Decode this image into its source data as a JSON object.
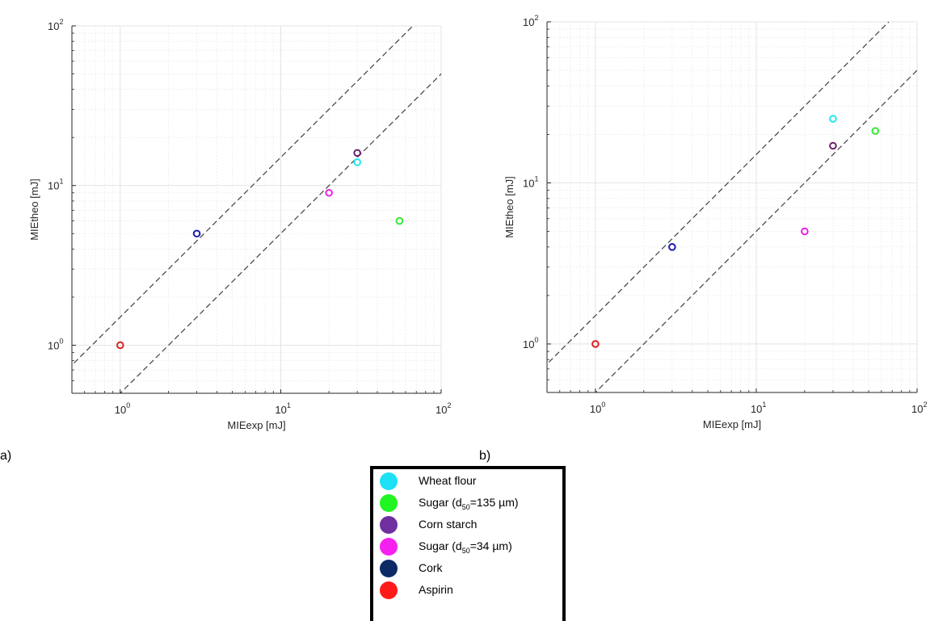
{
  "panels": {
    "a_label": "a)",
    "b_label": "b)"
  },
  "chart_data": [
    {
      "type": "scatter",
      "panel": "a",
      "xlabel": "MIEexp [mJ]",
      "ylabel": "MIEtheo [mJ]",
      "x_scale": "log",
      "y_scale": "log",
      "xlim": [
        0.5,
        100
      ],
      "ylim": [
        0.5,
        100
      ],
      "x_ticks": [
        1,
        10,
        100
      ],
      "y_ticks": [
        1,
        10,
        100
      ],
      "grid": true,
      "reference_lines": [
        {
          "style": "dashed",
          "relation": "y = 1.5x"
        },
        {
          "style": "dashed",
          "relation": "y = 0.5x"
        }
      ],
      "points": [
        {
          "name": "Wheat flour",
          "x": 30,
          "y": 14
        },
        {
          "name": "Sugar (d50=135 µm)",
          "x": 55,
          "y": 6
        },
        {
          "name": "Corn starch",
          "x": 30,
          "y": 16
        },
        {
          "name": "Sugar (d50=34 µm)",
          "x": 20,
          "y": 9
        },
        {
          "name": "Cork",
          "x": 3,
          "y": 5
        },
        {
          "name": "Aspirin",
          "x": 1,
          "y": 1
        }
      ]
    },
    {
      "type": "scatter",
      "panel": "b",
      "xlabel": "MIEexp [mJ]",
      "ylabel": "MIEtheo [mJ]",
      "x_scale": "log",
      "y_scale": "log",
      "xlim": [
        0.5,
        100
      ],
      "ylim": [
        0.5,
        100
      ],
      "x_ticks": [
        1,
        10,
        100
      ],
      "y_ticks": [
        1,
        10,
        100
      ],
      "grid": true,
      "reference_lines": [
        {
          "style": "dashed",
          "relation": "y = 1.5x"
        },
        {
          "style": "dashed",
          "relation": "y = 0.5x"
        }
      ],
      "points": [
        {
          "name": "Wheat flour",
          "x": 30,
          "y": 25
        },
        {
          "name": "Sugar (d50=135 µm)",
          "x": 55,
          "y": 21
        },
        {
          "name": "Corn starch",
          "x": 30,
          "y": 17
        },
        {
          "name": "Sugar (d50=34 µm)",
          "x": 20,
          "y": 5
        },
        {
          "name": "Cork",
          "x": 3,
          "y": 4
        },
        {
          "name": "Aspirin",
          "x": 1,
          "y": 1
        }
      ]
    }
  ],
  "legend": {
    "items": [
      {
        "name": "Wheat flour",
        "text": "Wheat flour",
        "sub": "",
        "text_after": "",
        "color": "#1ee0f5"
      },
      {
        "name": "Sugar (d50=135 µm)",
        "text": "Sugar (d",
        "sub": "50",
        "text_after": "=135 µm)",
        "color": "#22f522"
      },
      {
        "name": "Corn starch",
        "text": "Corn starch",
        "sub": "",
        "text_after": "",
        "color": "#7030a0"
      },
      {
        "name": "Sugar (d50=34 µm)",
        "text": "Sugar (d",
        "sub": "50",
        "text_after": "=34 µm)",
        "color": "#f520f0"
      },
      {
        "name": "Cork",
        "text": "Cork",
        "sub": "",
        "text_after": "",
        "color": "#0c2a66"
      },
      {
        "name": "Aspirin",
        "text": "Aspirin",
        "sub": "",
        "text_after": "",
        "color": "#ff1a1a"
      }
    ]
  },
  "marker_colors": {
    "Wheat flour": "#1ee8ee",
    "Sugar (d50=135 µm)": "#38e838",
    "Corn starch": "#6a1f6a",
    "Sugar (d50=34 µm)": "#ea20ea",
    "Cork": "#1a1ab0",
    "Aspirin": "#e02020"
  }
}
